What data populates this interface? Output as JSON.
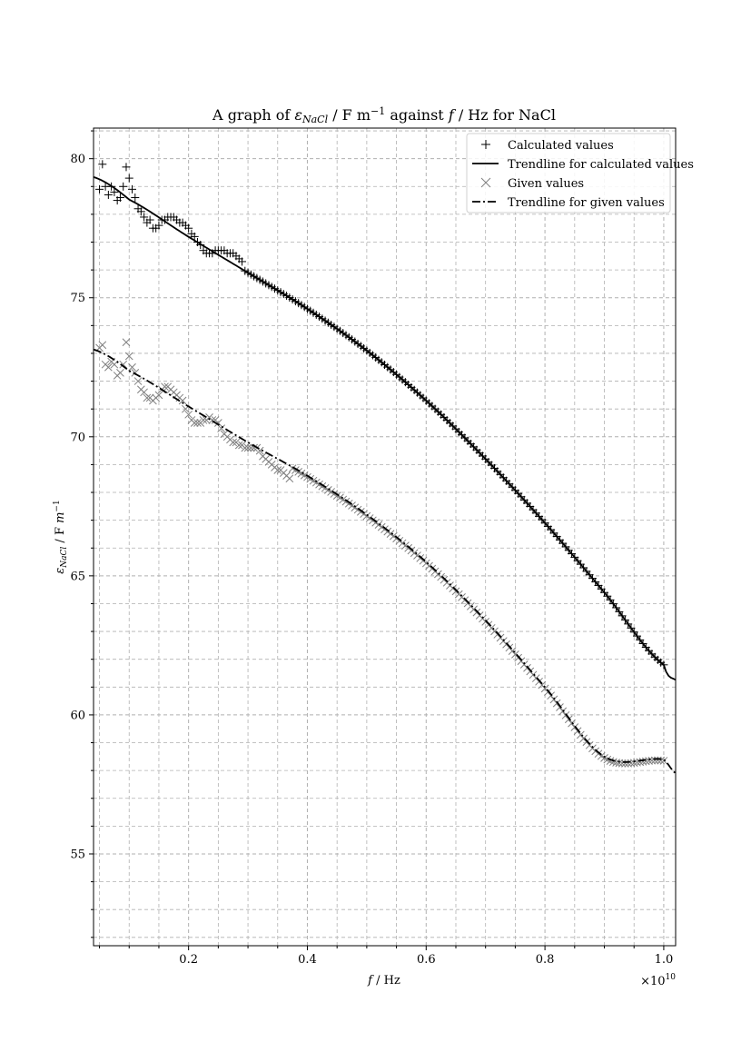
{
  "chart_data": {
    "type": "scatter",
    "title": {
      "pre": "A graph of ",
      "eps": "ε",
      "eps_sub": "NaCl",
      "mid": " / F m",
      "mid_sup": "−1",
      "post_a": " against ",
      "f": "f",
      "post_b": " / Hz for NaCl"
    },
    "xlabel": {
      "var": "f",
      "rest": " / Hz"
    },
    "ylabel": {
      "eps": "ε",
      "eps_sub": "NaCl",
      "unit": " / F ",
      "m": "m",
      "m_sup": "−1"
    },
    "offset_text": {
      "base": "×10",
      "exp": "10"
    },
    "xlim": [
      0.04,
      1.02
    ],
    "ylim": [
      51.7,
      81.1
    ],
    "x_scale_factor": "1e10",
    "x_major_ticks": [
      0.2,
      0.4,
      0.6,
      0.8,
      1.0
    ],
    "x_tick_labels": [
      "0.2",
      "0.4",
      "0.6",
      "0.8",
      "1.0"
    ],
    "y_major_ticks": [
      55,
      60,
      65,
      70,
      75,
      80
    ],
    "y_tick_labels": [
      "55",
      "60",
      "65",
      "70",
      "75",
      "80"
    ],
    "grid": true,
    "legend_position": "top-right",
    "colors": {
      "calculated": "#000000",
      "given": "#808080",
      "grid": "#b0b0b0"
    },
    "series": [
      {
        "name": "Calculated values",
        "kind": "scatter",
        "marker": "plus",
        "x": [
          0.05,
          0.055,
          0.06,
          0.065,
          0.07,
          0.075,
          0.08,
          0.085,
          0.09,
          0.095,
          0.1,
          0.105,
          0.11,
          0.115,
          0.12,
          0.125,
          0.13,
          0.135,
          0.14,
          0.145,
          0.15,
          0.155,
          0.16,
          0.165,
          0.17,
          0.175,
          0.18,
          0.185,
          0.19,
          0.195,
          0.2,
          0.205,
          0.21,
          0.215,
          0.22,
          0.225,
          0.23,
          0.235,
          0.24,
          0.245,
          0.25,
          0.255,
          0.26,
          0.265,
          0.27,
          0.275,
          0.28,
          0.285,
          0.29
        ],
        "y": [
          78.9,
          79.8,
          79.0,
          78.7,
          79.0,
          78.8,
          78.5,
          78.6,
          79.0,
          79.7,
          79.3,
          78.9,
          78.6,
          78.2,
          78.1,
          77.9,
          77.7,
          77.8,
          77.5,
          77.5,
          77.6,
          77.8,
          77.8,
          77.9,
          77.9,
          77.9,
          77.8,
          77.7,
          77.7,
          77.6,
          77.5,
          77.3,
          77.2,
          77.0,
          76.9,
          76.7,
          76.6,
          76.6,
          76.6,
          76.7,
          76.7,
          76.7,
          76.7,
          76.6,
          76.6,
          76.6,
          76.5,
          76.4,
          76.3
        ],
        "x_range": [
          0.29,
          1.0
        ],
        "x_step": 0.005
      },
      {
        "name": "Trendline for calculated values",
        "kind": "line",
        "style": "solid",
        "x": [
          0.04,
          0.1,
          0.2,
          0.3,
          0.4,
          0.5,
          0.6,
          0.7,
          0.8,
          0.9,
          1.0,
          1.02
        ],
        "y": [
          79.34,
          78.53,
          77.19,
          75.9,
          74.6,
          73.1,
          71.3,
          69.2,
          66.9,
          64.4,
          61.8,
          61.26
        ]
      },
      {
        "name": "Given values",
        "kind": "scatter",
        "marker": "x",
        "x": [
          0.05,
          0.055,
          0.06,
          0.065,
          0.07,
          0.075,
          0.08,
          0.085,
          0.09,
          0.095,
          0.1,
          0.105,
          0.11,
          0.115,
          0.12,
          0.125,
          0.13,
          0.135,
          0.14,
          0.145,
          0.15,
          0.155,
          0.16,
          0.165,
          0.17,
          0.175,
          0.18,
          0.185,
          0.19,
          0.195,
          0.2,
          0.205,
          0.21,
          0.215,
          0.22,
          0.225,
          0.23,
          0.235,
          0.24,
          0.245,
          0.25,
          0.255,
          0.26,
          0.265,
          0.27,
          0.275,
          0.28,
          0.285,
          0.29,
          0.295,
          0.3,
          0.305,
          0.31,
          0.315,
          0.32,
          0.325,
          0.33,
          0.335,
          0.34,
          0.345,
          0.35,
          0.355,
          0.36,
          0.365,
          0.37
        ],
        "y": [
          73.2,
          73.3,
          72.6,
          72.5,
          72.7,
          72.6,
          72.2,
          72.3,
          72.6,
          73.4,
          72.9,
          72.5,
          72.3,
          72.0,
          71.7,
          71.6,
          71.4,
          71.4,
          71.3,
          71.4,
          71.5,
          71.7,
          71.8,
          71.8,
          71.7,
          71.6,
          71.5,
          71.4,
          71.3,
          71.0,
          70.8,
          70.6,
          70.5,
          70.5,
          70.5,
          70.6,
          70.6,
          70.7,
          70.6,
          70.6,
          70.5,
          70.3,
          70.1,
          70.0,
          69.9,
          69.8,
          69.8,
          69.7,
          69.7,
          69.6,
          69.6,
          69.6,
          69.6,
          69.6,
          69.5,
          69.3,
          69.2,
          69.1,
          69.0,
          68.9,
          68.8,
          68.8,
          68.7,
          68.6,
          68.5
        ],
        "x_range": [
          0.37,
          1.0
        ],
        "x_step": 0.005
      },
      {
        "name": "Trendline for given values",
        "kind": "line",
        "style": "dashdot",
        "x": [
          0.04,
          0.1,
          0.2,
          0.3,
          0.4,
          0.5,
          0.6,
          0.7,
          0.8,
          0.9,
          1.0,
          1.02
        ],
        "y": [
          73.14,
          72.37,
          71.09,
          69.8,
          68.6,
          67.2,
          65.5,
          63.4,
          61.0,
          58.5,
          58.4,
          57.9
        ]
      }
    ]
  }
}
